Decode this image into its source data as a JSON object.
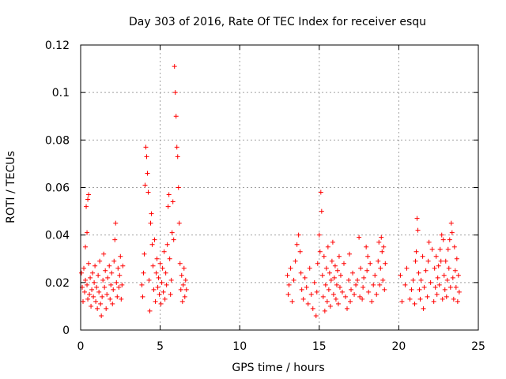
{
  "chart_data": {
    "type": "scatter",
    "title": "Day 303 of 2016, Rate Of TEC Index for receiver esqu",
    "xlabel": "GPS time / hours",
    "ylabel": "ROTI / TECUs",
    "xlim": [
      0,
      25
    ],
    "ylim": [
      0,
      0.12
    ],
    "xticks": [
      0,
      5,
      10,
      15,
      20,
      25
    ],
    "xtick_labels": [
      "0",
      "5",
      "10",
      "15",
      "20",
      "25"
    ],
    "yticks": [
      0,
      0.02,
      0.04,
      0.06,
      0.08,
      0.1,
      0.12
    ],
    "ytick_labels": [
      "0",
      "0.02",
      "0.04",
      "0.06",
      "0.08",
      "0.1",
      "0.12"
    ],
    "grid": true,
    "marker": "+",
    "color": "#ff0000",
    "series": [
      {
        "name": "ROTI",
        "points": [
          [
            0.05,
            0.024
          ],
          [
            0.1,
            0.018
          ],
          [
            0.15,
            0.012
          ],
          [
            0.2,
            0.026
          ],
          [
            0.25,
            0.016
          ],
          [
            0.3,
            0.021
          ],
          [
            0.3,
            0.035
          ],
          [
            0.35,
            0.052
          ],
          [
            0.4,
            0.041
          ],
          [
            0.4,
            0.019
          ],
          [
            0.45,
            0.055
          ],
          [
            0.45,
            0.013
          ],
          [
            0.5,
            0.057
          ],
          [
            0.5,
            0.028
          ],
          [
            0.55,
            0.015
          ],
          [
            0.6,
            0.022
          ],
          [
            0.65,
            0.01
          ],
          [
            0.7,
            0.017
          ],
          [
            0.75,
            0.024
          ],
          [
            0.8,
            0.014
          ],
          [
            0.85,
            0.02
          ],
          [
            0.9,
            0.027
          ],
          [
            0.95,
            0.012
          ],
          [
            1.0,
            0.018
          ],
          [
            1.05,
            0.009
          ],
          [
            1.1,
            0.023
          ],
          [
            1.15,
            0.016
          ],
          [
            1.2,
            0.029
          ],
          [
            1.25,
            0.011
          ],
          [
            1.3,
            0.006
          ],
          [
            1.35,
            0.014
          ],
          [
            1.4,
            0.021
          ],
          [
            1.45,
            0.032
          ],
          [
            1.5,
            0.018
          ],
          [
            1.55,
            0.025
          ],
          [
            1.6,
            0.009
          ],
          [
            1.65,
            0.015
          ],
          [
            1.7,
            0.022
          ],
          [
            1.8,
            0.027
          ],
          [
            1.85,
            0.013
          ],
          [
            1.9,
            0.019
          ],
          [
            1.95,
            0.024
          ],
          [
            2.0,
            0.011
          ],
          [
            2.05,
            0.017
          ],
          [
            2.1,
            0.029
          ],
          [
            2.15,
            0.038
          ],
          [
            2.2,
            0.045
          ],
          [
            2.25,
            0.02
          ],
          [
            2.3,
            0.014
          ],
          [
            2.35,
            0.026
          ],
          [
            2.4,
            0.018
          ],
          [
            2.45,
            0.023
          ],
          [
            2.5,
            0.031
          ],
          [
            2.55,
            0.013
          ],
          [
            2.6,
            0.019
          ],
          [
            2.65,
            0.027
          ],
          [
            3.85,
            0.019
          ],
          [
            3.9,
            0.014
          ],
          [
            3.95,
            0.024
          ],
          [
            4.0,
            0.032
          ],
          [
            4.05,
            0.061
          ],
          [
            4.1,
            0.077
          ],
          [
            4.15,
            0.073
          ],
          [
            4.2,
            0.066
          ],
          [
            4.25,
            0.058
          ],
          [
            4.3,
            0.021
          ],
          [
            4.35,
            0.008
          ],
          [
            4.4,
            0.045
          ],
          [
            4.45,
            0.049
          ],
          [
            4.5,
            0.036
          ],
          [
            4.55,
            0.027
          ],
          [
            4.6,
            0.017
          ],
          [
            4.65,
            0.038
          ],
          [
            4.7,
            0.012
          ],
          [
            4.75,
            0.024
          ],
          [
            4.8,
            0.03
          ],
          [
            4.85,
            0.018
          ],
          [
            4.9,
            0.022
          ],
          [
            4.95,
            0.015
          ],
          [
            5.0,
            0.028
          ],
          [
            5.05,
            0.011
          ],
          [
            5.1,
            0.02
          ],
          [
            5.15,
            0.026
          ],
          [
            5.2,
            0.016
          ],
          [
            5.25,
            0.033
          ],
          [
            5.3,
            0.013
          ],
          [
            5.35,
            0.024
          ],
          [
            5.4,
            0.019
          ],
          [
            5.45,
            0.036
          ],
          [
            5.5,
            0.052
          ],
          [
            5.55,
            0.057
          ],
          [
            5.6,
            0.03
          ],
          [
            5.65,
            0.015
          ],
          [
            5.7,
            0.021
          ],
          [
            5.75,
            0.041
          ],
          [
            5.8,
            0.054
          ],
          [
            5.85,
            0.038
          ],
          [
            5.9,
            0.111
          ],
          [
            5.95,
            0.1
          ],
          [
            6.0,
            0.09
          ],
          [
            6.05,
            0.077
          ],
          [
            6.1,
            0.073
          ],
          [
            6.15,
            0.06
          ],
          [
            6.2,
            0.045
          ],
          [
            6.25,
            0.028
          ],
          [
            6.3,
            0.017
          ],
          [
            6.35,
            0.023
          ],
          [
            6.4,
            0.012
          ],
          [
            6.45,
            0.019
          ],
          [
            6.5,
            0.026
          ],
          [
            6.55,
            0.014
          ],
          [
            6.6,
            0.021
          ],
          [
            6.65,
            0.017
          ],
          [
            13.0,
            0.023
          ],
          [
            13.05,
            0.015
          ],
          [
            13.1,
            0.019
          ],
          [
            13.2,
            0.026
          ],
          [
            13.3,
            0.012
          ],
          [
            13.4,
            0.021
          ],
          [
            13.5,
            0.029
          ],
          [
            13.6,
            0.036
          ],
          [
            13.7,
            0.04
          ],
          [
            13.8,
            0.033
          ],
          [
            13.85,
            0.024
          ],
          [
            13.9,
            0.017
          ],
          [
            14.0,
            0.013
          ],
          [
            14.1,
            0.022
          ],
          [
            14.2,
            0.018
          ],
          [
            14.3,
            0.011
          ],
          [
            14.4,
            0.026
          ],
          [
            14.5,
            0.015
          ],
          [
            14.6,
            0.009
          ],
          [
            14.7,
            0.02
          ],
          [
            14.8,
            0.006
          ],
          [
            14.85,
            0.016
          ],
          [
            14.9,
            0.028
          ],
          [
            15.0,
            0.04
          ],
          [
            15.05,
            0.033
          ],
          [
            15.1,
            0.058
          ],
          [
            15.15,
            0.05
          ],
          [
            15.2,
            0.023
          ],
          [
            15.25,
            0.014
          ],
          [
            15.3,
            0.031
          ],
          [
            15.35,
            0.008
          ],
          [
            15.4,
            0.019
          ],
          [
            15.45,
            0.026
          ],
          [
            15.5,
            0.012
          ],
          [
            15.55,
            0.035
          ],
          [
            15.6,
            0.017
          ],
          [
            15.65,
            0.024
          ],
          [
            15.7,
            0.01
          ],
          [
            15.75,
            0.021
          ],
          [
            15.8,
            0.029
          ],
          [
            15.85,
            0.037
          ],
          [
            15.9,
            0.015
          ],
          [
            15.95,
            0.022
          ],
          [
            16.0,
            0.027
          ],
          [
            16.05,
            0.013
          ],
          [
            16.1,
            0.019
          ],
          [
            16.15,
            0.025
          ],
          [
            16.2,
            0.011
          ],
          [
            16.25,
            0.031
          ],
          [
            16.3,
            0.018
          ],
          [
            16.35,
            0.023
          ],
          [
            16.45,
            0.016
          ],
          [
            16.55,
            0.028
          ],
          [
            16.65,
            0.014
          ],
          [
            16.75,
            0.009
          ],
          [
            16.85,
            0.021
          ],
          [
            16.9,
            0.032
          ],
          [
            16.95,
            0.012
          ],
          [
            17.0,
            0.017
          ],
          [
            17.1,
            0.024
          ],
          [
            17.2,
            0.015
          ],
          [
            17.3,
            0.019
          ],
          [
            17.4,
            0.021
          ],
          [
            17.5,
            0.039
          ],
          [
            17.55,
            0.014
          ],
          [
            17.6,
            0.026
          ],
          [
            17.7,
            0.013
          ],
          [
            17.75,
            0.018
          ],
          [
            17.8,
            0.022
          ],
          [
            17.95,
            0.035
          ],
          [
            18.0,
            0.025
          ],
          [
            18.05,
            0.031
          ],
          [
            18.1,
            0.016
          ],
          [
            18.2,
            0.028
          ],
          [
            18.3,
            0.012
          ],
          [
            18.4,
            0.019
          ],
          [
            18.5,
            0.023
          ],
          [
            18.6,
            0.015
          ],
          [
            18.7,
            0.029
          ],
          [
            18.75,
            0.037
          ],
          [
            18.8,
            0.019
          ],
          [
            18.85,
            0.026
          ],
          [
            18.9,
            0.039
          ],
          [
            18.95,
            0.033
          ],
          [
            19.0,
            0.021
          ],
          [
            19.05,
            0.035
          ],
          [
            19.1,
            0.017
          ],
          [
            19.15,
            0.028
          ],
          [
            20.1,
            0.023
          ],
          [
            20.2,
            0.012
          ],
          [
            20.4,
            0.019
          ],
          [
            20.5,
            0.026
          ],
          [
            20.7,
            0.013
          ],
          [
            20.8,
            0.017
          ],
          [
            20.9,
            0.021
          ],
          [
            21.0,
            0.011
          ],
          [
            21.05,
            0.029
          ],
          [
            21.1,
            0.033
          ],
          [
            21.15,
            0.047
          ],
          [
            21.2,
            0.042
          ],
          [
            21.25,
            0.024
          ],
          [
            21.3,
            0.017
          ],
          [
            21.35,
            0.013
          ],
          [
            21.4,
            0.021
          ],
          [
            21.5,
            0.031
          ],
          [
            21.55,
            0.009
          ],
          [
            21.6,
            0.018
          ],
          [
            21.7,
            0.025
          ],
          [
            21.8,
            0.014
          ],
          [
            21.85,
            0.029
          ],
          [
            21.9,
            0.037
          ],
          [
            22.0,
            0.02
          ],
          [
            22.1,
            0.034
          ],
          [
            22.2,
            0.012
          ],
          [
            22.25,
            0.026
          ],
          [
            22.3,
            0.018
          ],
          [
            22.35,
            0.031
          ],
          [
            22.4,
            0.015
          ],
          [
            22.45,
            0.022
          ],
          [
            22.5,
            0.027
          ],
          [
            22.55,
            0.019
          ],
          [
            22.6,
            0.034
          ],
          [
            22.65,
            0.029
          ],
          [
            22.7,
            0.04
          ],
          [
            22.75,
            0.013
          ],
          [
            22.8,
            0.038
          ],
          [
            22.85,
            0.023
          ],
          [
            22.9,
            0.017
          ],
          [
            22.95,
            0.029
          ],
          [
            23.0,
            0.014
          ],
          [
            23.05,
            0.021
          ],
          [
            23.1,
            0.034
          ],
          [
            23.15,
            0.026
          ],
          [
            23.2,
            0.038
          ],
          [
            23.25,
            0.018
          ],
          [
            23.3,
            0.045
          ],
          [
            23.35,
            0.041
          ],
          [
            23.4,
            0.022
          ],
          [
            23.45,
            0.013
          ],
          [
            23.5,
            0.035
          ],
          [
            23.55,
            0.025
          ],
          [
            23.6,
            0.018
          ],
          [
            23.65,
            0.03
          ],
          [
            23.7,
            0.012
          ],
          [
            23.75,
            0.023
          ],
          [
            23.8,
            0.016
          ]
        ]
      }
    ]
  }
}
